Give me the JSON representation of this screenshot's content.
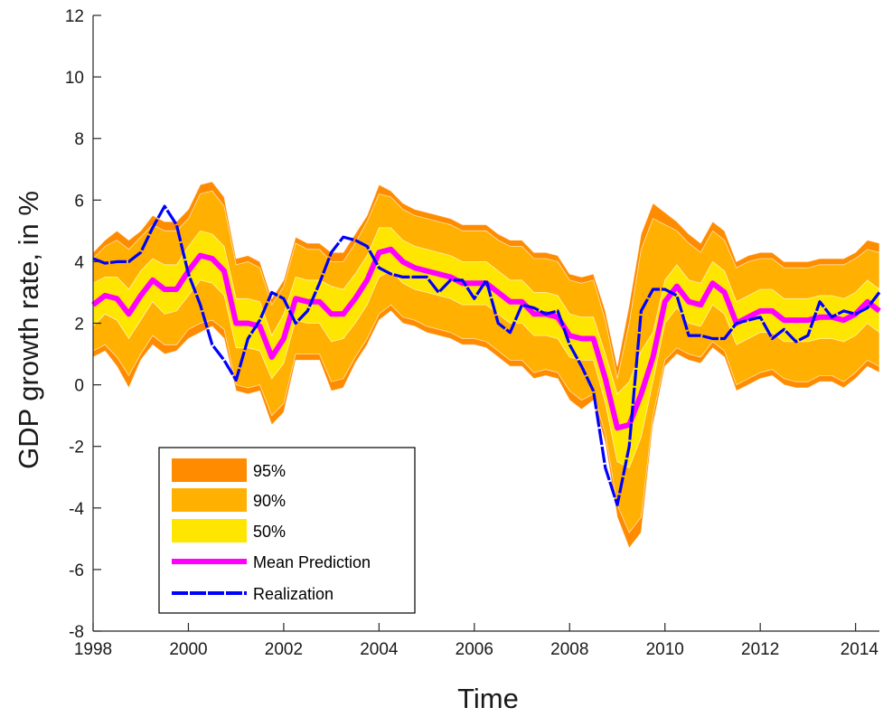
{
  "chart_data": {
    "type": "area",
    "xlabel": "Time",
    "ylabel": "GDP growth rate, in %",
    "xlim": [
      1998,
      2014.5
    ],
    "ylim": [
      -8,
      12
    ],
    "xticks": [
      1998,
      2000,
      2002,
      2004,
      2006,
      2008,
      2010,
      2012,
      2014
    ],
    "yticks": [
      -8,
      -6,
      -4,
      -2,
      0,
      2,
      4,
      6,
      8,
      10,
      12
    ],
    "x": [
      1998.0,
      1998.25,
      1998.5,
      1998.75,
      1999.0,
      1999.25,
      1999.5,
      1999.75,
      2000.0,
      2000.25,
      2000.5,
      2000.75,
      2001.0,
      2001.25,
      2001.5,
      2001.75,
      2002.0,
      2002.25,
      2002.5,
      2002.75,
      2003.0,
      2003.25,
      2003.5,
      2003.75,
      2004.0,
      2004.25,
      2004.5,
      2004.75,
      2005.0,
      2005.25,
      2005.5,
      2005.75,
      2006.0,
      2006.25,
      2006.5,
      2006.75,
      2007.0,
      2007.25,
      2007.5,
      2007.75,
      2008.0,
      2008.25,
      2008.5,
      2008.75,
      2009.0,
      2009.25,
      2009.5,
      2009.75,
      2010.0,
      2010.25,
      2010.5,
      2010.75,
      2011.0,
      2011.25,
      2011.5,
      2011.75,
      2012.0,
      2012.25,
      2012.5,
      2012.75,
      2013.0,
      2013.25,
      2013.5,
      2013.75,
      2014.0,
      2014.25,
      2014.5
    ],
    "mean": [
      2.6,
      2.9,
      2.8,
      2.3,
      2.9,
      3.4,
      3.1,
      3.1,
      3.7,
      4.2,
      4.1,
      3.7,
      2.0,
      2.0,
      1.9,
      0.9,
      1.5,
      2.8,
      2.7,
      2.7,
      2.3,
      2.3,
      2.8,
      3.4,
      4.3,
      4.4,
      4.0,
      3.8,
      3.7,
      3.6,
      3.5,
      3.3,
      3.3,
      3.3,
      3.0,
      2.7,
      2.7,
      2.3,
      2.3,
      2.2,
      1.6,
      1.5,
      1.5,
      0.2,
      -1.4,
      -1.3,
      -0.3,
      0.9,
      2.7,
      3.2,
      2.7,
      2.6,
      3.3,
      3.0,
      2.0,
      2.2,
      2.4,
      2.4,
      2.1,
      2.1,
      2.1,
      2.2,
      2.2,
      2.1,
      2.3,
      2.7,
      2.4
    ],
    "realization": [
      4.1,
      3.95,
      4.0,
      4.0,
      4.3,
      5.1,
      5.8,
      5.2,
      3.6,
      2.6,
      1.3,
      0.8,
      0.15,
      1.5,
      2.1,
      3.0,
      2.8,
      2.0,
      2.4,
      3.3,
      4.3,
      4.8,
      4.7,
      4.5,
      3.8,
      3.6,
      3.5,
      3.5,
      3.5,
      3.0,
      3.4,
      3.4,
      2.8,
      3.4,
      2.0,
      1.7,
      2.6,
      2.5,
      2.3,
      2.4,
      1.3,
      0.6,
      -0.2,
      -2.7,
      -3.9,
      -2.0,
      2.4,
      3.1,
      3.1,
      2.9,
      1.6,
      1.6,
      1.5,
      1.5,
      2.0,
      2.1,
      2.2,
      1.5,
      1.8,
      1.4,
      1.6,
      2.7,
      2.2,
      2.4,
      2.3,
      2.5,
      3.0
    ],
    "bands": [
      {
        "name": "95%",
        "color": "#FF8C00",
        "lower": [
          0.9,
          1.1,
          0.6,
          -0.1,
          0.8,
          1.3,
          1.0,
          1.1,
          1.5,
          1.7,
          1.9,
          1.5,
          -0.2,
          -0.3,
          -0.2,
          -1.3,
          -0.9,
          0.8,
          0.8,
          0.8,
          -0.2,
          -0.1,
          0.7,
          1.3,
          2.1,
          2.4,
          2.0,
          1.9,
          1.7,
          1.6,
          1.5,
          1.3,
          1.3,
          1.2,
          0.9,
          0.6,
          0.6,
          0.2,
          0.3,
          0.2,
          -0.5,
          -0.8,
          -0.5,
          -1.9,
          -4.3,
          -5.3,
          -4.8,
          -1.3,
          0.6,
          1.0,
          0.8,
          0.7,
          1.2,
          0.9,
          -0.2,
          0.0,
          0.2,
          0.3,
          0.0,
          -0.1,
          -0.1,
          0.1,
          0.1,
          -0.1,
          0.2,
          0.6,
          0.4
        ],
        "upper": [
          4.3,
          4.7,
          5.0,
          4.7,
          5.0,
          5.5,
          5.3,
          5.3,
          5.7,
          6.5,
          6.6,
          6.1,
          4.1,
          4.2,
          4.0,
          2.8,
          3.4,
          4.8,
          4.6,
          4.6,
          4.3,
          4.3,
          4.9,
          5.5,
          6.5,
          6.3,
          5.9,
          5.7,
          5.6,
          5.5,
          5.4,
          5.2,
          5.2,
          5.2,
          4.9,
          4.7,
          4.7,
          4.3,
          4.3,
          4.2,
          3.6,
          3.5,
          3.6,
          2.4,
          0.6,
          2.6,
          4.9,
          5.9,
          5.6,
          5.3,
          4.9,
          4.6,
          5.3,
          5.0,
          4.0,
          4.2,
          4.3,
          4.3,
          4.0,
          4.0,
          4.0,
          4.1,
          4.1,
          4.1,
          4.3,
          4.7,
          4.6
        ]
      },
      {
        "name": "90%",
        "color": "#FFB000",
        "lower": [
          1.1,
          1.3,
          0.9,
          0.3,
          1.0,
          1.6,
          1.3,
          1.3,
          1.8,
          2.0,
          2.1,
          1.8,
          0.0,
          -0.1,
          0.0,
          -1.0,
          -0.6,
          1.0,
          1.0,
          1.0,
          0.1,
          0.2,
          0.9,
          1.5,
          2.3,
          2.6,
          2.2,
          2.1,
          1.9,
          1.8,
          1.7,
          1.5,
          1.5,
          1.4,
          1.1,
          0.8,
          0.8,
          0.4,
          0.5,
          0.4,
          -0.2,
          -0.5,
          -0.3,
          -1.6,
          -3.9,
          -4.8,
          -4.3,
          -1.0,
          0.8,
          1.2,
          1.0,
          0.9,
          1.4,
          1.1,
          0.0,
          0.2,
          0.4,
          0.5,
          0.2,
          0.1,
          0.1,
          0.3,
          0.3,
          0.1,
          0.4,
          0.8,
          0.6
        ],
        "upper": [
          4.1,
          4.5,
          4.7,
          4.4,
          4.8,
          5.2,
          5.0,
          5.0,
          5.4,
          6.2,
          6.3,
          5.8,
          3.9,
          4.0,
          3.8,
          2.6,
          3.2,
          4.6,
          4.4,
          4.4,
          4.0,
          4.0,
          4.6,
          5.3,
          6.2,
          6.1,
          5.7,
          5.5,
          5.4,
          5.3,
          5.2,
          5.0,
          5.0,
          5.0,
          4.7,
          4.5,
          4.5,
          4.1,
          4.1,
          4.0,
          3.4,
          3.3,
          3.4,
          2.1,
          0.2,
          2.0,
          4.4,
          5.4,
          5.2,
          5.0,
          4.6,
          4.3,
          5.0,
          4.7,
          3.8,
          4.0,
          4.1,
          4.1,
          3.8,
          3.8,
          3.8,
          3.9,
          3.9,
          3.9,
          4.1,
          4.4,
          4.3
        ]
      },
      {
        "name": "50%",
        "color": "#FFE600",
        "lower": [
          1.9,
          2.3,
          2.1,
          1.5,
          2.1,
          2.7,
          2.3,
          2.4,
          2.9,
          3.4,
          3.3,
          2.9,
          1.2,
          1.2,
          1.1,
          0.2,
          0.7,
          2.1,
          2.0,
          2.0,
          1.4,
          1.5,
          2.0,
          2.6,
          3.5,
          3.7,
          3.3,
          3.1,
          3.0,
          2.9,
          2.8,
          2.6,
          2.6,
          2.6,
          2.3,
          2.0,
          2.0,
          1.6,
          1.6,
          1.5,
          0.9,
          0.8,
          0.8,
          -0.6,
          -2.5,
          -2.7,
          -1.7,
          0.1,
          2.0,
          2.5,
          2.0,
          1.9,
          2.6,
          2.3,
          1.3,
          1.5,
          1.7,
          1.7,
          1.4,
          1.4,
          1.4,
          1.5,
          1.5,
          1.4,
          1.6,
          2.0,
          1.7
        ],
        "upper": [
          3.3,
          3.5,
          3.5,
          3.1,
          3.7,
          4.1,
          3.9,
          3.9,
          4.5,
          5.0,
          4.9,
          4.5,
          2.8,
          2.8,
          2.7,
          1.6,
          2.3,
          3.5,
          3.4,
          3.4,
          3.2,
          3.1,
          3.6,
          4.2,
          5.1,
          5.1,
          4.7,
          4.5,
          4.4,
          4.3,
          4.2,
          4.0,
          4.0,
          4.0,
          3.7,
          3.4,
          3.4,
          3.0,
          3.0,
          2.9,
          2.3,
          2.2,
          2.2,
          1.0,
          -0.3,
          0.1,
          1.1,
          1.7,
          3.4,
          3.9,
          3.4,
          3.3,
          4.0,
          3.7,
          2.7,
          2.9,
          3.1,
          3.1,
          2.8,
          2.8,
          2.8,
          2.9,
          2.9,
          2.8,
          3.0,
          3.4,
          3.1
        ]
      }
    ],
    "series": [
      {
        "name": "Mean Prediction",
        "color": "#FF00FF"
      },
      {
        "name": "Realization",
        "color": "#0000FF"
      }
    ],
    "legend": {
      "position": "bottom-left",
      "entries": [
        {
          "label": "95%",
          "color": "#FF8C00",
          "kind": "patch"
        },
        {
          "label": "90%",
          "color": "#FFB000",
          "kind": "patch"
        },
        {
          "label": "50%",
          "color": "#FFE600",
          "kind": "patch"
        },
        {
          "label": "Mean Prediction",
          "color": "#FF00FF",
          "kind": "line"
        },
        {
          "label": "Realization",
          "color": "#0000FF",
          "kind": "line"
        }
      ]
    }
  }
}
